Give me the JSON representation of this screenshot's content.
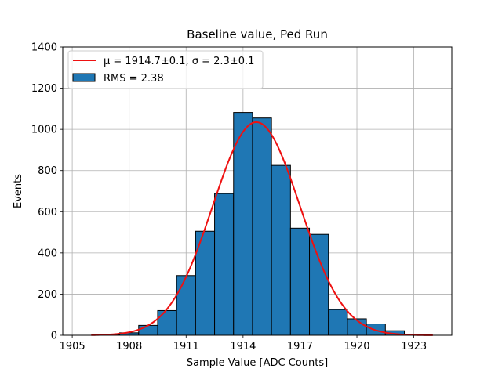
{
  "chart_data": {
    "type": "bar",
    "title": "Baseline value, Ped Run",
    "xlabel": "Sample Value [ADC Counts]",
    "ylabel": "Events",
    "xlim": [
      1904.5,
      1925
    ],
    "ylim": [
      0,
      1400
    ],
    "xticks": [
      1905,
      1908,
      1911,
      1914,
      1917,
      1920,
      1923
    ],
    "yticks": [
      0,
      200,
      400,
      600,
      800,
      1000,
      1200,
      1400
    ],
    "grid": true,
    "legend_position": "top-left",
    "bar_color": "#1f77b4",
    "fit_color": "#ee1111",
    "histogram": {
      "name": "RMS = 2.38",
      "bin_width": 1,
      "bin_starts": [
        1905.5,
        1906.5,
        1907.5,
        1908.5,
        1909.5,
        1910.5,
        1911.5,
        1912.5,
        1913.5,
        1914.5,
        1915.5,
        1916.5,
        1917.5,
        1918.5,
        1919.5,
        1920.5,
        1921.5,
        1922.5,
        1923.5
      ],
      "counts": [
        0,
        3,
        12,
        48,
        120,
        290,
        505,
        688,
        1082,
        1055,
        825,
        520,
        490,
        125,
        80,
        55,
        22,
        5,
        0
      ]
    },
    "fit": {
      "name": "μ = 1914.7±0.1, σ = 2.3±0.1",
      "x_range": [
        1906,
        1924
      ],
      "mu": 1914.7,
      "sigma": 2.3,
      "amplitude": 1035
    }
  }
}
